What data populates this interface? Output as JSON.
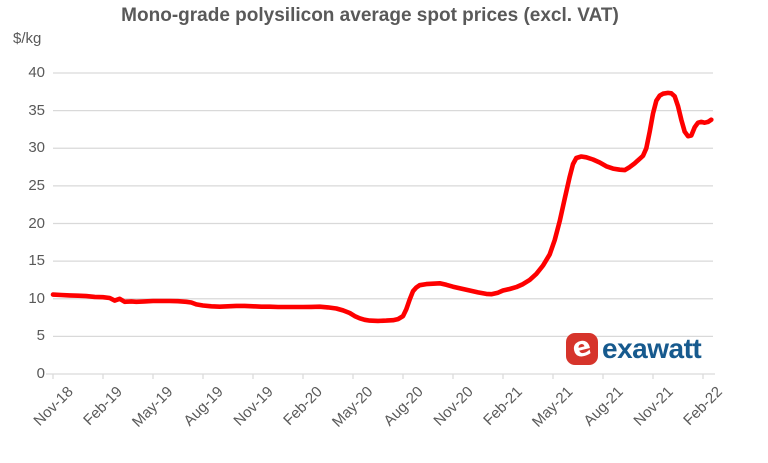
{
  "chart": {
    "title": "Mono-grade polysilicon average spot prices (excl. VAT)",
    "unit": "$/kg"
  },
  "chart_data": {
    "type": "line",
    "title": "Mono-grade polysilicon average spot prices (excl. VAT)",
    "ylabel": "$/kg",
    "ylim": [
      0,
      40
    ],
    "y_ticks": [
      0,
      5,
      10,
      15,
      20,
      25,
      30,
      35,
      40
    ],
    "x_tick_labels": [
      "Nov-18",
      "Feb-19",
      "May-19",
      "Aug-19",
      "Nov-19",
      "Feb-20",
      "May-20",
      "Aug-20",
      "Nov-20",
      "Feb-21",
      "May-21",
      "Aug-21",
      "Nov-21",
      "Feb-22"
    ],
    "x_axis_note": "x values below are months after Nov-2018; tick labels every 3 months",
    "grid": "horizontal",
    "legend": "none",
    "line_color": "#fe0000",
    "series": [
      {
        "name": "Mono-grade polysilicon average spot price ($/kg, excl. VAT)",
        "points": [
          [
            0,
            10.55
          ],
          [
            0.5,
            10.5
          ],
          [
            1,
            10.45
          ],
          [
            1.5,
            10.4
          ],
          [
            2,
            10.35
          ],
          [
            2.5,
            10.25
          ],
          [
            3,
            10.2
          ],
          [
            3.4,
            10.1
          ],
          [
            3.7,
            9.75
          ],
          [
            4,
            10.0
          ],
          [
            4.3,
            9.6
          ],
          [
            4.7,
            9.65
          ],
          [
            5,
            9.6
          ],
          [
            5.5,
            9.65
          ],
          [
            6,
            9.7
          ],
          [
            6.5,
            9.7
          ],
          [
            7,
            9.7
          ],
          [
            7.5,
            9.68
          ],
          [
            8,
            9.6
          ],
          [
            8.3,
            9.5
          ],
          [
            8.6,
            9.25
          ],
          [
            9,
            9.1
          ],
          [
            9.5,
            9.0
          ],
          [
            10,
            8.95
          ],
          [
            10.5,
            9.0
          ],
          [
            11,
            9.05
          ],
          [
            11.5,
            9.05
          ],
          [
            12,
            9.0
          ],
          [
            12.5,
            8.95
          ],
          [
            13,
            8.95
          ],
          [
            13.5,
            8.9
          ],
          [
            14,
            8.9
          ],
          [
            14.5,
            8.9
          ],
          [
            15,
            8.9
          ],
          [
            15.5,
            8.92
          ],
          [
            16,
            8.95
          ],
          [
            16.5,
            8.85
          ],
          [
            17,
            8.7
          ],
          [
            17.4,
            8.45
          ],
          [
            17.8,
            8.1
          ],
          [
            18.1,
            7.7
          ],
          [
            18.4,
            7.4
          ],
          [
            18.7,
            7.2
          ],
          [
            19,
            7.1
          ],
          [
            19.5,
            7.05
          ],
          [
            20,
            7.1
          ],
          [
            20.4,
            7.15
          ],
          [
            20.7,
            7.3
          ],
          [
            21,
            7.7
          ],
          [
            21.2,
            8.6
          ],
          [
            21.4,
            9.9
          ],
          [
            21.6,
            11.0
          ],
          [
            21.8,
            11.5
          ],
          [
            22,
            11.8
          ],
          [
            22.4,
            11.95
          ],
          [
            22.8,
            12.0
          ],
          [
            23.2,
            12.05
          ],
          [
            23.6,
            11.85
          ],
          [
            24,
            11.6
          ],
          [
            24.5,
            11.35
          ],
          [
            25,
            11.1
          ],
          [
            25.5,
            10.85
          ],
          [
            26,
            10.65
          ],
          [
            26.3,
            10.6
          ],
          [
            26.7,
            10.8
          ],
          [
            27,
            11.1
          ],
          [
            27.4,
            11.3
          ],
          [
            27.8,
            11.55
          ],
          [
            28.2,
            11.95
          ],
          [
            28.6,
            12.5
          ],
          [
            29,
            13.3
          ],
          [
            29.4,
            14.4
          ],
          [
            29.8,
            15.9
          ],
          [
            30.1,
            17.8
          ],
          [
            30.4,
            20.3
          ],
          [
            30.7,
            23.3
          ],
          [
            31,
            26.2
          ],
          [
            31.2,
            27.9
          ],
          [
            31.4,
            28.7
          ],
          [
            31.7,
            28.9
          ],
          [
            32,
            28.8
          ],
          [
            32.4,
            28.5
          ],
          [
            32.8,
            28.1
          ],
          [
            33.2,
            27.6
          ],
          [
            33.6,
            27.3
          ],
          [
            34,
            27.15
          ],
          [
            34.3,
            27.1
          ],
          [
            34.6,
            27.5
          ],
          [
            34.9,
            28.0
          ],
          [
            35.2,
            28.6
          ],
          [
            35.4,
            29.0
          ],
          [
            35.6,
            30.0
          ],
          [
            35.8,
            32.2
          ],
          [
            36,
            34.6
          ],
          [
            36.2,
            36.3
          ],
          [
            36.4,
            37.0
          ],
          [
            36.6,
            37.25
          ],
          [
            36.9,
            37.35
          ],
          [
            37.1,
            37.3
          ],
          [
            37.3,
            36.9
          ],
          [
            37.5,
            35.6
          ],
          [
            37.7,
            33.8
          ],
          [
            37.9,
            32.2
          ],
          [
            38.1,
            31.6
          ],
          [
            38.3,
            31.7
          ],
          [
            38.5,
            32.8
          ],
          [
            38.7,
            33.4
          ],
          [
            38.9,
            33.5
          ],
          [
            39.1,
            33.4
          ],
          [
            39.3,
            33.5
          ],
          [
            39.5,
            33.8
          ]
        ]
      }
    ]
  },
  "logo": {
    "icon_letter": "e",
    "text": "exawatt",
    "icon_color": "#d6342b",
    "text_color": "#175a8e"
  },
  "colors": {
    "line": "#fe0000",
    "text": "#595959",
    "gridline": "#d9d9d9",
    "background": "#ffffff"
  }
}
